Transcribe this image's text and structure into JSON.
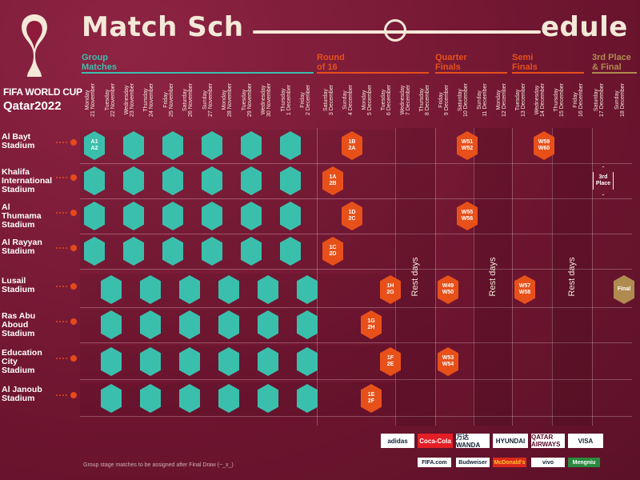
{
  "header": {
    "title_left": "Match Sch",
    "title_right": "edule"
  },
  "logo": {
    "line1": "FIFA WORLD CUP",
    "line2": "Qatar2022",
    "emblem_colors": [
      "#f4e9d8",
      "#8e1b3a"
    ]
  },
  "colors": {
    "background": "#7a1a36",
    "group_stage": "#3bbfad",
    "knockout": "#e8501a",
    "final": "#b08b4f",
    "title": "#f4e9d8"
  },
  "phases": [
    {
      "label": "Group\nMatches",
      "color": "#3bbfad"
    },
    {
      "label": "Round\nof 16",
      "color": "#e8501a"
    },
    {
      "label": "Quarter\nFinals",
      "color": "#e8501a"
    },
    {
      "label": "Semi\nFinals",
      "color": "#e8501a"
    },
    {
      "label": "3rd Place\n& Final",
      "color": "#b08b4f"
    }
  ],
  "days": [
    "Monday\n21 November",
    "Tuesday\n22 November",
    "Wednesday\n23 November",
    "Thursday\n24 November",
    "Friday\n25 November",
    "Saturday\n26 November",
    "Sunday\n27 November",
    "Monday\n28 November",
    "Tuesday\n29 November",
    "Wednesday\n30 November",
    "Thursday\n1 December",
    "Friday\n2 December",
    "Saturday\n3 December",
    "Sunday\n4 December",
    "Monday\n5 December",
    "Tuesday\n6 December",
    "Wednesday\n7 December",
    "Thursday\n8 December",
    "Friday\n9 December",
    "Saturday\n10 December",
    "Sunday\n11 December",
    "Monday\n12 December",
    "Tuesday\n13 December",
    "Wednesday\n14 December",
    "Thursday\n15 December",
    "Friday\n16 December",
    "Saturday\n17 December",
    "Sunday\n18 December"
  ],
  "stadiums": [
    {
      "name": "Al Bayt\nStadium"
    },
    {
      "name": "Khalifa\nInternational\nStadium"
    },
    {
      "name": "Al\nThumama\nStadium"
    },
    {
      "name": "Al Rayyan\nStadium"
    },
    {
      "name": "Lusail\nStadium"
    },
    {
      "name": "Ras Abu\nAboud\nStadium"
    },
    {
      "name": "Education\nCity\nStadium"
    },
    {
      "name": "Al Janoub\nStadium"
    }
  ],
  "matches": [
    {
      "stadium": 0,
      "day": 0,
      "type": "group",
      "label": "A1\nA2"
    },
    {
      "stadium": 0,
      "day": 1,
      "type": "group",
      "label": ""
    },
    {
      "stadium": 0,
      "day": 2,
      "type": "group",
      "label": ""
    },
    {
      "stadium": 0,
      "day": 3,
      "type": "group",
      "label": ""
    },
    {
      "stadium": 0,
      "day": 4,
      "type": "group",
      "label": ""
    },
    {
      "stadium": 0,
      "day": 5,
      "type": "group",
      "label": ""
    },
    {
      "stadium": 0,
      "day": 13,
      "type": "ko",
      "label": "1B\n2A"
    },
    {
      "stadium": 0,
      "day": 19,
      "type": "ko",
      "label": "W51\nW52"
    },
    {
      "stadium": 0,
      "day": 23,
      "type": "ko",
      "label": "W59\nW60"
    },
    {
      "stadium": 1,
      "day": 0,
      "type": "group",
      "label": ""
    },
    {
      "stadium": 1,
      "day": 1,
      "type": "group",
      "label": ""
    },
    {
      "stadium": 1,
      "day": 2,
      "type": "group",
      "label": ""
    },
    {
      "stadium": 1,
      "day": 3,
      "type": "group",
      "label": ""
    },
    {
      "stadium": 1,
      "day": 4,
      "type": "group",
      "label": ""
    },
    {
      "stadium": 1,
      "day": 5,
      "type": "group",
      "label": ""
    },
    {
      "stadium": 1,
      "day": 12,
      "type": "ko",
      "label": "1A\n2B"
    },
    {
      "stadium": 1,
      "day": 26,
      "type": "third",
      "label": "3rd\nPlace"
    },
    {
      "stadium": 2,
      "day": 0,
      "type": "group",
      "label": ""
    },
    {
      "stadium": 2,
      "day": 1,
      "type": "group",
      "label": ""
    },
    {
      "stadium": 2,
      "day": 2,
      "type": "group",
      "label": ""
    },
    {
      "stadium": 2,
      "day": 3,
      "type": "group",
      "label": ""
    },
    {
      "stadium": 2,
      "day": 4,
      "type": "group",
      "label": ""
    },
    {
      "stadium": 2,
      "day": 5,
      "type": "group",
      "label": ""
    },
    {
      "stadium": 2,
      "day": 13,
      "type": "ko",
      "label": "1D\n2C"
    },
    {
      "stadium": 2,
      "day": 19,
      "type": "ko",
      "label": "W55\nW56"
    },
    {
      "stadium": 3,
      "day": 0,
      "type": "group",
      "label": ""
    },
    {
      "stadium": 3,
      "day": 1,
      "type": "group",
      "label": ""
    },
    {
      "stadium": 3,
      "day": 2,
      "type": "group",
      "label": ""
    },
    {
      "stadium": 3,
      "day": 3,
      "type": "group",
      "label": ""
    },
    {
      "stadium": 3,
      "day": 4,
      "type": "group",
      "label": ""
    },
    {
      "stadium": 3,
      "day": 5,
      "type": "group",
      "label": ""
    },
    {
      "stadium": 3,
      "day": 12,
      "type": "ko",
      "label": "1C\n2D"
    },
    {
      "stadium": 4,
      "day": 6,
      "type": "group",
      "label": ""
    },
    {
      "stadium": 4,
      "day": 7,
      "type": "group",
      "label": ""
    },
    {
      "stadium": 4,
      "day": 8,
      "type": "group",
      "label": ""
    },
    {
      "stadium": 4,
      "day": 9,
      "type": "group",
      "label": ""
    },
    {
      "stadium": 4,
      "day": 10,
      "type": "group",
      "label": ""
    },
    {
      "stadium": 4,
      "day": 11,
      "type": "group",
      "label": ""
    },
    {
      "stadium": 4,
      "day": 15,
      "type": "ko",
      "label": "1H\n2G"
    },
    {
      "stadium": 4,
      "day": 18,
      "type": "ko",
      "label": "W49\nW50"
    },
    {
      "stadium": 4,
      "day": 22,
      "type": "ko",
      "label": "W57\nW58"
    },
    {
      "stadium": 4,
      "day": 27,
      "type": "final",
      "label": "Final"
    },
    {
      "stadium": 5,
      "day": 6,
      "type": "group",
      "label": ""
    },
    {
      "stadium": 5,
      "day": 7,
      "type": "group",
      "label": ""
    },
    {
      "stadium": 5,
      "day": 8,
      "type": "group",
      "label": ""
    },
    {
      "stadium": 5,
      "day": 9,
      "type": "group",
      "label": ""
    },
    {
      "stadium": 5,
      "day": 10,
      "type": "group",
      "label": ""
    },
    {
      "stadium": 5,
      "day": 11,
      "type": "group",
      "label": ""
    },
    {
      "stadium": 5,
      "day": 14,
      "type": "ko",
      "label": "1G\n2H"
    },
    {
      "stadium": 6,
      "day": 6,
      "type": "group",
      "label": ""
    },
    {
      "stadium": 6,
      "day": 7,
      "type": "group",
      "label": ""
    },
    {
      "stadium": 6,
      "day": 8,
      "type": "group",
      "label": ""
    },
    {
      "stadium": 6,
      "day": 9,
      "type": "group",
      "label": ""
    },
    {
      "stadium": 6,
      "day": 10,
      "type": "group",
      "label": ""
    },
    {
      "stadium": 6,
      "day": 11,
      "type": "group",
      "label": ""
    },
    {
      "stadium": 6,
      "day": 15,
      "type": "ko",
      "label": "1F\n2E"
    },
    {
      "stadium": 6,
      "day": 18,
      "type": "ko",
      "label": "W53\nW54"
    },
    {
      "stadium": 7,
      "day": 6,
      "type": "group",
      "label": ""
    },
    {
      "stadium": 7,
      "day": 7,
      "type": "group",
      "label": ""
    },
    {
      "stadium": 7,
      "day": 8,
      "type": "group",
      "label": ""
    },
    {
      "stadium": 7,
      "day": 9,
      "type": "group",
      "label": ""
    },
    {
      "stadium": 7,
      "day": 10,
      "type": "group",
      "label": ""
    },
    {
      "stadium": 7,
      "day": 11,
      "type": "group",
      "label": ""
    },
    {
      "stadium": 7,
      "day": 14,
      "type": "ko",
      "label": "1E\n2F"
    }
  ],
  "rest_days": [
    {
      "label": "Rest days"
    },
    {
      "label": "Rest days"
    },
    {
      "label": "Rest days"
    },
    {
      "label": "Rest days"
    }
  ],
  "footnote": "Group stage matches to be assigned after Final Draw (~_x_)",
  "sponsors": {
    "row1": [
      "adidas",
      "Coca-Cola",
      "万达 WANDA",
      "HYUNDAI",
      "QATAR AIRWAYS",
      "VISA"
    ],
    "row2": [
      "FIFA.com",
      "Budweiser",
      "McDonald's",
      "vivo",
      "Mengniu"
    ]
  }
}
